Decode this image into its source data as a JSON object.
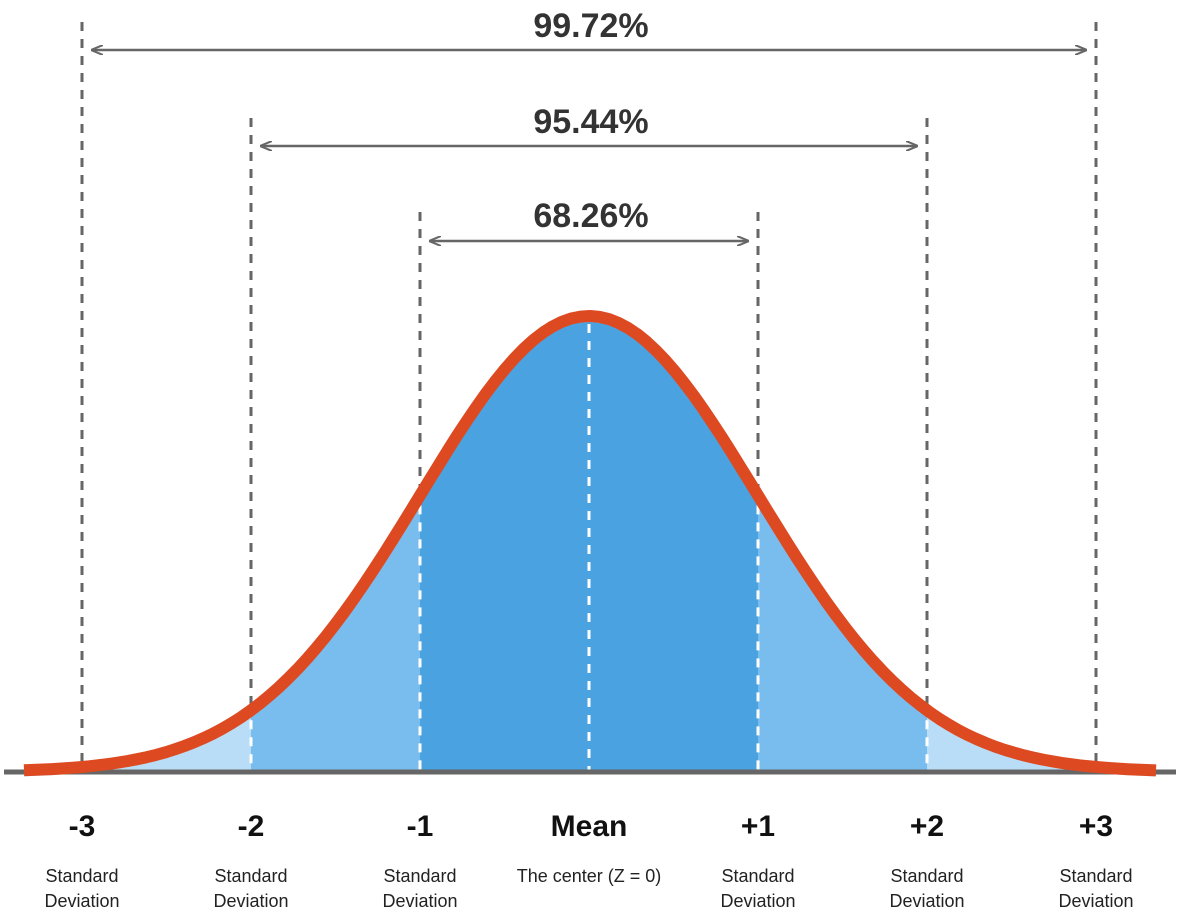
{
  "chart_data": {
    "type": "area",
    "title": "",
    "distribution": "normal",
    "mean": 0,
    "sd": 1,
    "xlim": [
      -3.5,
      3.5
    ],
    "ticks": [
      {
        "z": -3,
        "label": "-3",
        "sub": [
          "Standard",
          "Deviation"
        ]
      },
      {
        "z": -2,
        "label": "-2",
        "sub": [
          "Standard",
          "Deviation"
        ]
      },
      {
        "z": -1,
        "label": "-1",
        "sub": [
          "Standard",
          "Deviation"
        ]
      },
      {
        "z": 0,
        "label": "Mean",
        "sub": [
          "The center (Z = 0)"
        ]
      },
      {
        "z": 1,
        "label": "+1",
        "sub": [
          "Standard",
          "Deviation"
        ]
      },
      {
        "z": 2,
        "label": "+2",
        "sub": [
          "Standard",
          "Deviation"
        ]
      },
      {
        "z": 3,
        "label": "+3",
        "sub": [
          "Standard",
          "Deviation"
        ]
      }
    ],
    "intervals": [
      {
        "from": -1,
        "to": 1,
        "label": "68.26%"
      },
      {
        "from": -2,
        "to": 2,
        "label": "95.44%"
      },
      {
        "from": -3,
        "to": 3,
        "label": "99.72%"
      }
    ],
    "colors": {
      "curve": "#dd4a22",
      "band1": "#4aa3e0",
      "band2": "#79bdef",
      "band3": "#b9ddf7",
      "guide": "#666666",
      "axis": "#666666"
    }
  }
}
